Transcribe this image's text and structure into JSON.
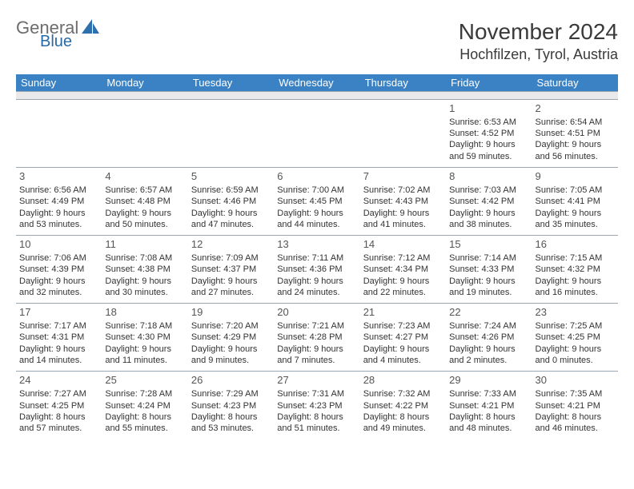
{
  "brand": {
    "name_main": "General",
    "name_sub": "Blue",
    "text_color": "#6c6c6c",
    "sub_color": "#2968a6"
  },
  "header": {
    "title": "November 2024",
    "location": "Hochfilzen, Tyrol, Austria"
  },
  "style": {
    "header_bg": "#3b82c4",
    "header_fg": "#ffffff",
    "spacer_bg": "#e9e9e9",
    "border_color": "#9aa8b5",
    "body_text": "#333333",
    "page_bg": "#ffffff"
  },
  "days_of_week": [
    "Sunday",
    "Monday",
    "Tuesday",
    "Wednesday",
    "Thursday",
    "Friday",
    "Saturday"
  ],
  "weeks": [
    [
      {
        "n": "",
        "sunrise": "",
        "sunset": "",
        "daylight": ""
      },
      {
        "n": "",
        "sunrise": "",
        "sunset": "",
        "daylight": ""
      },
      {
        "n": "",
        "sunrise": "",
        "sunset": "",
        "daylight": ""
      },
      {
        "n": "",
        "sunrise": "",
        "sunset": "",
        "daylight": ""
      },
      {
        "n": "",
        "sunrise": "",
        "sunset": "",
        "daylight": ""
      },
      {
        "n": "1",
        "sunrise": "Sunrise: 6:53 AM",
        "sunset": "Sunset: 4:52 PM",
        "daylight": "Daylight: 9 hours and 59 minutes."
      },
      {
        "n": "2",
        "sunrise": "Sunrise: 6:54 AM",
        "sunset": "Sunset: 4:51 PM",
        "daylight": "Daylight: 9 hours and 56 minutes."
      }
    ],
    [
      {
        "n": "3",
        "sunrise": "Sunrise: 6:56 AM",
        "sunset": "Sunset: 4:49 PM",
        "daylight": "Daylight: 9 hours and 53 minutes."
      },
      {
        "n": "4",
        "sunrise": "Sunrise: 6:57 AM",
        "sunset": "Sunset: 4:48 PM",
        "daylight": "Daylight: 9 hours and 50 minutes."
      },
      {
        "n": "5",
        "sunrise": "Sunrise: 6:59 AM",
        "sunset": "Sunset: 4:46 PM",
        "daylight": "Daylight: 9 hours and 47 minutes."
      },
      {
        "n": "6",
        "sunrise": "Sunrise: 7:00 AM",
        "sunset": "Sunset: 4:45 PM",
        "daylight": "Daylight: 9 hours and 44 minutes."
      },
      {
        "n": "7",
        "sunrise": "Sunrise: 7:02 AM",
        "sunset": "Sunset: 4:43 PM",
        "daylight": "Daylight: 9 hours and 41 minutes."
      },
      {
        "n": "8",
        "sunrise": "Sunrise: 7:03 AM",
        "sunset": "Sunset: 4:42 PM",
        "daylight": "Daylight: 9 hours and 38 minutes."
      },
      {
        "n": "9",
        "sunrise": "Sunrise: 7:05 AM",
        "sunset": "Sunset: 4:41 PM",
        "daylight": "Daylight: 9 hours and 35 minutes."
      }
    ],
    [
      {
        "n": "10",
        "sunrise": "Sunrise: 7:06 AM",
        "sunset": "Sunset: 4:39 PM",
        "daylight": "Daylight: 9 hours and 32 minutes."
      },
      {
        "n": "11",
        "sunrise": "Sunrise: 7:08 AM",
        "sunset": "Sunset: 4:38 PM",
        "daylight": "Daylight: 9 hours and 30 minutes."
      },
      {
        "n": "12",
        "sunrise": "Sunrise: 7:09 AM",
        "sunset": "Sunset: 4:37 PM",
        "daylight": "Daylight: 9 hours and 27 minutes."
      },
      {
        "n": "13",
        "sunrise": "Sunrise: 7:11 AM",
        "sunset": "Sunset: 4:36 PM",
        "daylight": "Daylight: 9 hours and 24 minutes."
      },
      {
        "n": "14",
        "sunrise": "Sunrise: 7:12 AM",
        "sunset": "Sunset: 4:34 PM",
        "daylight": "Daylight: 9 hours and 22 minutes."
      },
      {
        "n": "15",
        "sunrise": "Sunrise: 7:14 AM",
        "sunset": "Sunset: 4:33 PM",
        "daylight": "Daylight: 9 hours and 19 minutes."
      },
      {
        "n": "16",
        "sunrise": "Sunrise: 7:15 AM",
        "sunset": "Sunset: 4:32 PM",
        "daylight": "Daylight: 9 hours and 16 minutes."
      }
    ],
    [
      {
        "n": "17",
        "sunrise": "Sunrise: 7:17 AM",
        "sunset": "Sunset: 4:31 PM",
        "daylight": "Daylight: 9 hours and 14 minutes."
      },
      {
        "n": "18",
        "sunrise": "Sunrise: 7:18 AM",
        "sunset": "Sunset: 4:30 PM",
        "daylight": "Daylight: 9 hours and 11 minutes."
      },
      {
        "n": "19",
        "sunrise": "Sunrise: 7:20 AM",
        "sunset": "Sunset: 4:29 PM",
        "daylight": "Daylight: 9 hours and 9 minutes."
      },
      {
        "n": "20",
        "sunrise": "Sunrise: 7:21 AM",
        "sunset": "Sunset: 4:28 PM",
        "daylight": "Daylight: 9 hours and 7 minutes."
      },
      {
        "n": "21",
        "sunrise": "Sunrise: 7:23 AM",
        "sunset": "Sunset: 4:27 PM",
        "daylight": "Daylight: 9 hours and 4 minutes."
      },
      {
        "n": "22",
        "sunrise": "Sunrise: 7:24 AM",
        "sunset": "Sunset: 4:26 PM",
        "daylight": "Daylight: 9 hours and 2 minutes."
      },
      {
        "n": "23",
        "sunrise": "Sunrise: 7:25 AM",
        "sunset": "Sunset: 4:25 PM",
        "daylight": "Daylight: 9 hours and 0 minutes."
      }
    ],
    [
      {
        "n": "24",
        "sunrise": "Sunrise: 7:27 AM",
        "sunset": "Sunset: 4:25 PM",
        "daylight": "Daylight: 8 hours and 57 minutes."
      },
      {
        "n": "25",
        "sunrise": "Sunrise: 7:28 AM",
        "sunset": "Sunset: 4:24 PM",
        "daylight": "Daylight: 8 hours and 55 minutes."
      },
      {
        "n": "26",
        "sunrise": "Sunrise: 7:29 AM",
        "sunset": "Sunset: 4:23 PM",
        "daylight": "Daylight: 8 hours and 53 minutes."
      },
      {
        "n": "27",
        "sunrise": "Sunrise: 7:31 AM",
        "sunset": "Sunset: 4:23 PM",
        "daylight": "Daylight: 8 hours and 51 minutes."
      },
      {
        "n": "28",
        "sunrise": "Sunrise: 7:32 AM",
        "sunset": "Sunset: 4:22 PM",
        "daylight": "Daylight: 8 hours and 49 minutes."
      },
      {
        "n": "29",
        "sunrise": "Sunrise: 7:33 AM",
        "sunset": "Sunset: 4:21 PM",
        "daylight": "Daylight: 8 hours and 48 minutes."
      },
      {
        "n": "30",
        "sunrise": "Sunrise: 7:35 AM",
        "sunset": "Sunset: 4:21 PM",
        "daylight": "Daylight: 8 hours and 46 minutes."
      }
    ]
  ]
}
